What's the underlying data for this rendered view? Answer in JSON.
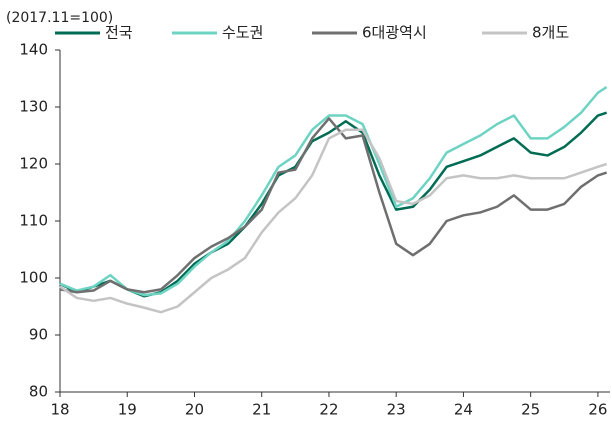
{
  "chart_data": {
    "type": "line",
    "annotation": "(2017.11=100)",
    "x": [
      18,
      18.25,
      18.5,
      18.75,
      19,
      19.25,
      19.5,
      19.75,
      20,
      20.25,
      20.5,
      20.75,
      21,
      21.25,
      21.5,
      21.75,
      22,
      22.25,
      22.5,
      22.75,
      23,
      23.25,
      23.5,
      23.75,
      24,
      24.25,
      24.5,
      24.75,
      25,
      25.25,
      25.5,
      25.75,
      26,
      26.13
    ],
    "series": [
      {
        "name": "전국",
        "color": "#006c54",
        "values": [
          99,
          97.5,
          98.5,
          99.5,
          98,
          96.8,
          97.5,
          99.5,
          102.5,
          104.5,
          106,
          109,
          113,
          118,
          119.5,
          124,
          125.5,
          127.5,
          125.5,
          118,
          112,
          112.5,
          115.5,
          119.5,
          120.5,
          121.5,
          123,
          124.5,
          122,
          121.5,
          123,
          125.5,
          128.5,
          129
        ]
      },
      {
        "name": "수도권",
        "color": "#6dd3c2",
        "values": [
          99,
          97.8,
          98.5,
          100.5,
          98,
          97,
          97.3,
          99,
          102,
          104.5,
          106.5,
          110,
          114.5,
          119.5,
          121.5,
          126,
          128.5,
          128.5,
          127,
          120,
          112.5,
          114,
          117.5,
          122,
          123.5,
          125,
          127,
          128.5,
          124.5,
          124.5,
          126.5,
          129,
          132.5,
          133.5
        ]
      },
      {
        "name": "6대광역시",
        "color": "#6f6f6f",
        "values": [
          98,
          97.5,
          97.8,
          99.5,
          98,
          97.5,
          98,
          100.5,
          103.5,
          105.5,
          107,
          109,
          112,
          118.5,
          119,
          124.5,
          128,
          124.5,
          125,
          115,
          106,
          104,
          106,
          110,
          111,
          111.5,
          112.5,
          114.5,
          112,
          112,
          113,
          116,
          118,
          118.5
        ]
      },
      {
        "name": "8개도",
        "color": "#c4c4c4",
        "values": [
          98.5,
          96.5,
          96,
          96.5,
          95.5,
          94.8,
          94,
          95,
          97.5,
          100,
          101.5,
          103.5,
          108,
          111.5,
          114,
          118,
          124.5,
          126,
          126,
          121,
          113.5,
          113,
          114.5,
          117.5,
          118,
          117.5,
          117.5,
          118,
          117.5,
          117.5,
          117.5,
          118.5,
          119.5,
          120
        ]
      }
    ],
    "xlim": [
      18,
      26.15
    ],
    "xticks": [
      18,
      19,
      20,
      21,
      22,
      23,
      24,
      25,
      26
    ],
    "ylim": [
      80,
      140
    ],
    "yticks": [
      80,
      90,
      100,
      110,
      120,
      130,
      140
    ],
    "grid": false
  }
}
